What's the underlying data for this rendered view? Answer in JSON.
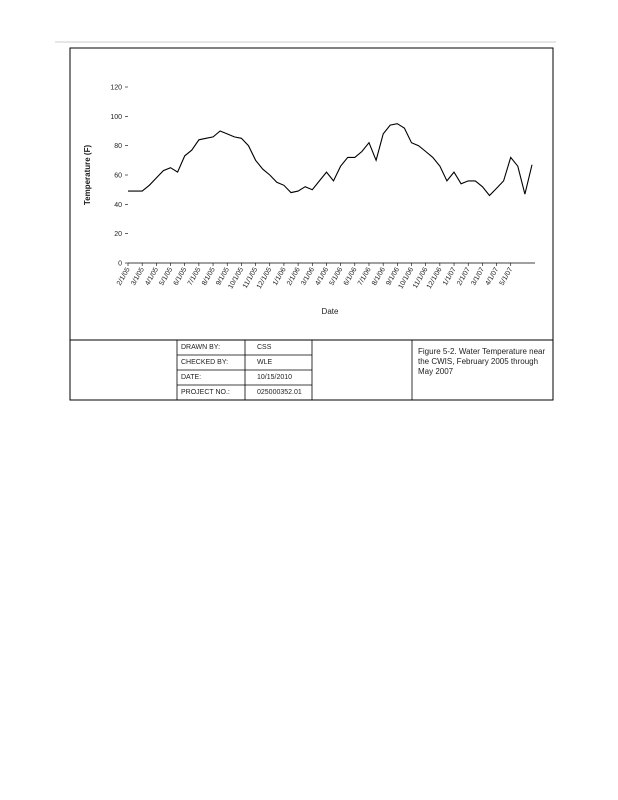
{
  "chart_data": {
    "type": "line",
    "y_label": "Temperature (F)",
    "x_label": "Date",
    "categories": [
      "2/1/05",
      null,
      "3/1/05",
      null,
      "4/1/05",
      null,
      "5/1/05",
      null,
      "6/1/05",
      null,
      "7/1/05",
      null,
      "8/1/05",
      null,
      "9/1/05",
      null,
      "10/1/05",
      null,
      "11/1/05",
      null,
      "12/1/05",
      null,
      "1/1/06",
      null,
      "2/1/06",
      null,
      "3/1/06",
      null,
      "4/1/06",
      null,
      "5/1/06",
      null,
      "6/1/06",
      null,
      "7/1/06",
      null,
      "8/1/06",
      null,
      "9/1/06",
      null,
      "10/1/06",
      null,
      "11/1/06",
      null,
      "12/1/06",
      null,
      "1/1/07",
      null,
      "2/1/07",
      null,
      "3/1/07",
      null,
      "4/1/07",
      null,
      "5/1/07",
      null,
      null,
      null
    ],
    "values": [
      49,
      49,
      49,
      53,
      58,
      63,
      65,
      62,
      73,
      77,
      84,
      85,
      86,
      90,
      88,
      86,
      85,
      80,
      70,
      64,
      60,
      55,
      53,
      48,
      49,
      52,
      50,
      56,
      62,
      56,
      66,
      72,
      72,
      76,
      82,
      70,
      88,
      94,
      95,
      92,
      82,
      80,
      76,
      72,
      66,
      56,
      62,
      54,
      56,
      56,
      52,
      46,
      51,
      56,
      72,
      66,
      47,
      67
    ],
    "color": "#000000",
    "ylim": [
      0,
      120
    ],
    "yticks": [
      0,
      20,
      40,
      60,
      80,
      100,
      120
    ]
  },
  "title_block": {
    "rows": [
      [
        "DRAWN BY:",
        "CSS"
      ],
      [
        "CHECKED BY:",
        "WLE"
      ],
      [
        "DATE:",
        "10/15/2010"
      ],
      [
        "PROJECT NO.:",
        "025000352.01"
      ]
    ],
    "caption": "Figure 5-2. Water Temperature near the CWIS, February 2005 through May 2007"
  }
}
